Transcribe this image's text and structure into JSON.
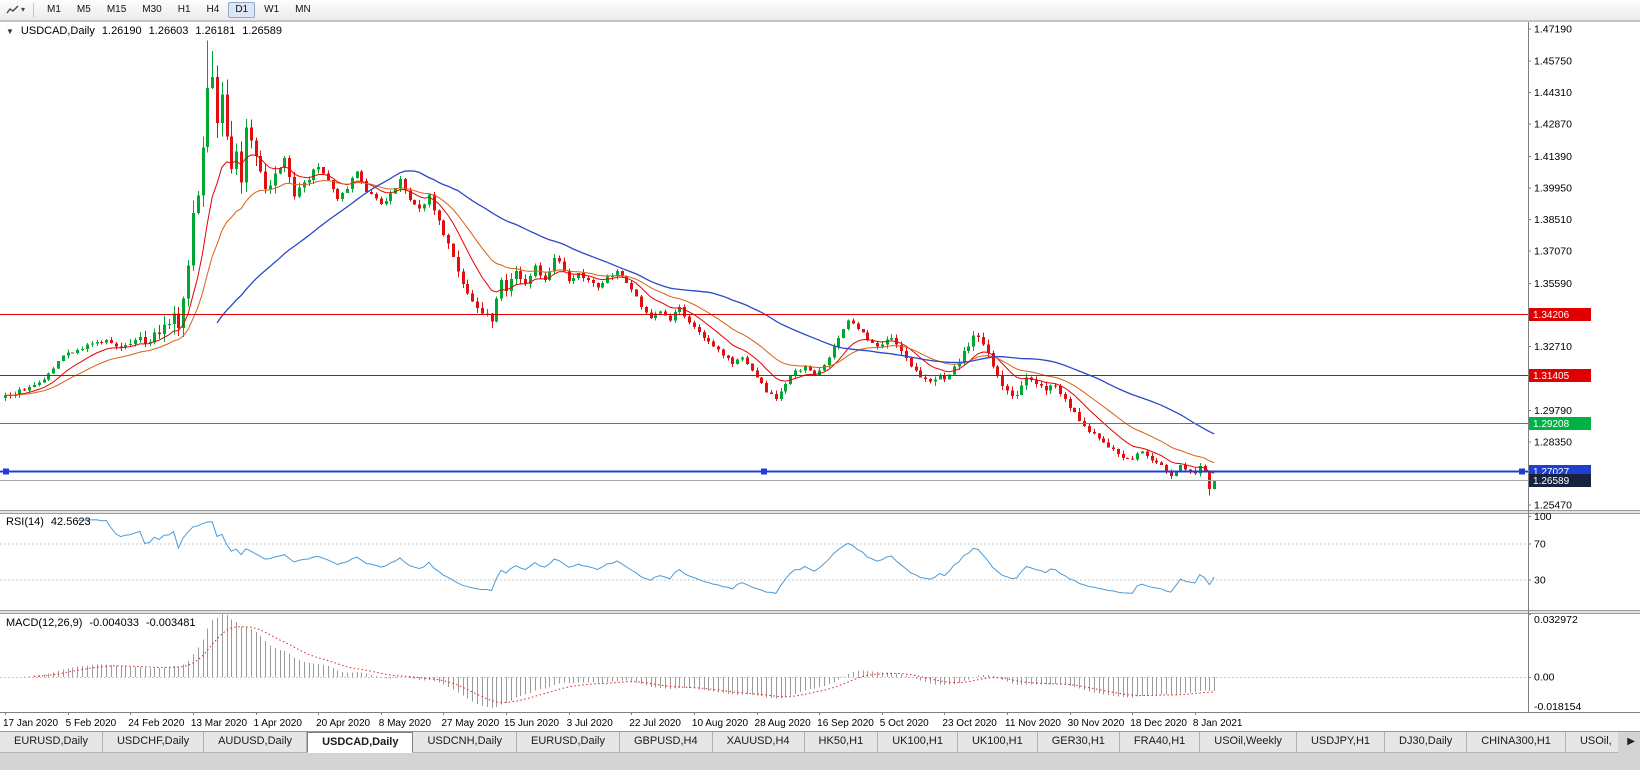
{
  "toolbar": {
    "timeframes": [
      "M1",
      "M5",
      "M15",
      "M30",
      "H1",
      "H4",
      "D1",
      "W1",
      "MN"
    ],
    "active_timeframe": "D1"
  },
  "icons": {
    "chart_dropdown": "▼",
    "toolbar_caret": "▾",
    "tab_scroll_right": "▶"
  },
  "chart": {
    "symbol_period": "USDCAD,Daily",
    "ohlc": {
      "open": "1.26190",
      "high": "1.26603",
      "low": "1.26181",
      "close": "1.26589"
    }
  },
  "chart_data": {
    "type": "candlestick",
    "title": "USDCAD,Daily",
    "candle_count": 252,
    "date_label_interval": 13,
    "x_axis_dates": [
      "17 Jan 2020",
      "5 Feb 2020",
      "24 Feb 2020",
      "13 Mar 2020",
      "1 Apr 2020",
      "20 Apr 2020",
      "8 May 2020",
      "27 May 2020",
      "15 Jun 2020",
      "3 Jul 2020",
      "22 Jul 2020",
      "10 Aug 2020",
      "28 Aug 2020",
      "16 Sep 2020",
      "5 Oct 2020",
      "23 Oct 2020",
      "11 Nov 2020",
      "30 Nov 2020",
      "18 Dec 2020",
      "8 Jan 2021"
    ],
    "y_axis_ticks": [
      "1.47190",
      "1.45750",
      "1.44310",
      "1.42870",
      "1.41390",
      "1.39950",
      "1.38510",
      "1.37070",
      "1.35590",
      "1.32710",
      "1.29790",
      "1.28350",
      "1.25470"
    ],
    "price_scale": {
      "max": 1.4752,
      "min": 1.2524
    },
    "up_color": "#00a832",
    "down_color": "#e01010",
    "price_anchors": [
      [
        0,
        1.3048
      ],
      [
        4,
        1.307
      ],
      [
        8,
        1.312
      ],
      [
        12,
        1.323
      ],
      [
        15,
        1.3255
      ],
      [
        18,
        1.3285
      ],
      [
        21,
        1.33
      ],
      [
        24,
        1.3265
      ],
      [
        27,
        1.33
      ],
      [
        30,
        1.329
      ],
      [
        33,
        1.337
      ],
      [
        35,
        1.342
      ],
      [
        36,
        1.3355
      ],
      [
        37,
        1.349
      ],
      [
        38,
        1.364
      ],
      [
        39,
        1.388
      ],
      [
        40,
        1.396
      ],
      [
        41,
        1.418
      ],
      [
        42,
        1.445
      ],
      [
        43,
        1.45
      ],
      [
        44,
        1.429
      ],
      [
        45,
        1.442
      ],
      [
        46,
        1.423
      ],
      [
        47,
        1.408
      ],
      [
        48,
        1.416
      ],
      [
        49,
        1.402
      ],
      [
        50,
        1.427
      ],
      [
        51,
        1.421
      ],
      [
        52,
        1.414
      ],
      [
        53,
        1.407
      ],
      [
        54,
        1.399
      ],
      [
        56,
        1.406
      ],
      [
        58,
        1.413
      ],
      [
        60,
        1.3955
      ],
      [
        62,
        1.402
      ],
      [
        65,
        1.409
      ],
      [
        67,
        1.403
      ],
      [
        69,
        1.3945
      ],
      [
        71,
        1.399
      ],
      [
        73,
        1.407
      ],
      [
        75,
        1.3975
      ],
      [
        78,
        1.392
      ],
      [
        80,
        1.397
      ],
      [
        82,
        1.4035
      ],
      [
        84,
        1.394
      ],
      [
        86,
        1.39
      ],
      [
        88,
        1.3965
      ],
      [
        90,
        1.3845
      ],
      [
        91,
        1.378
      ],
      [
        93,
        1.368
      ],
      [
        95,
        1.3555
      ],
      [
        97,
        1.3475
      ],
      [
        99,
        1.342
      ],
      [
        101,
        1.3385
      ],
      [
        103,
        1.3575
      ],
      [
        104,
        1.3525
      ],
      [
        106,
        1.3615
      ],
      [
        108,
        1.3555
      ],
      [
        110,
        1.364
      ],
      [
        112,
        1.3575
      ],
      [
        114,
        1.3675
      ],
      [
        116,
        1.3615
      ],
      [
        117,
        1.357
      ],
      [
        119,
        1.3605
      ],
      [
        121,
        1.3575
      ],
      [
        123,
        1.354
      ],
      [
        125,
        1.359
      ],
      [
        127,
        1.3615
      ],
      [
        129,
        1.356
      ],
      [
        130,
        1.353
      ],
      [
        132,
        1.345
      ],
      [
        134,
        1.34
      ],
      [
        136,
        1.343
      ],
      [
        138,
        1.339
      ],
      [
        140,
        1.345
      ],
      [
        142,
        1.338
      ],
      [
        143,
        1.336
      ],
      [
        145,
        1.331
      ],
      [
        147,
        1.327
      ],
      [
        149,
        1.323
      ],
      [
        151,
        1.319
      ],
      [
        153,
        1.322
      ],
      [
        155,
        1.316
      ],
      [
        156,
        1.313
      ],
      [
        158,
        1.306
      ],
      [
        160,
        1.303
      ],
      [
        162,
        1.31
      ],
      [
        164,
        1.316
      ],
      [
        166,
        1.318
      ],
      [
        168,
        1.314
      ],
      [
        169,
        1.316
      ],
      [
        171,
        1.322
      ],
      [
        173,
        1.331
      ],
      [
        175,
        1.339
      ],
      [
        177,
        1.335
      ],
      [
        179,
        1.33
      ],
      [
        181,
        1.327
      ],
      [
        182,
        1.328
      ],
      [
        184,
        1.331
      ],
      [
        186,
        1.325
      ],
      [
        188,
        1.318
      ],
      [
        190,
        1.313
      ],
      [
        192,
        1.311
      ],
      [
        194,
        1.314
      ],
      [
        195,
        1.312
      ],
      [
        197,
        1.318
      ],
      [
        199,
        1.325
      ],
      [
        201,
        1.332
      ],
      [
        203,
        1.328
      ],
      [
        205,
        1.318
      ],
      [
        207,
        1.309
      ],
      [
        208,
        1.307
      ],
      [
        210,
        1.305
      ],
      [
        212,
        1.313
      ],
      [
        214,
        1.31
      ],
      [
        216,
        1.307
      ],
      [
        218,
        1.309
      ],
      [
        220,
        1.303
      ],
      [
        221,
        1.299
      ],
      [
        223,
        1.293
      ],
      [
        225,
        1.288
      ],
      [
        227,
        1.285
      ],
      [
        229,
        1.281
      ],
      [
        231,
        1.278
      ],
      [
        233,
        1.276
      ],
      [
        234,
        1.2755
      ],
      [
        236,
        1.279
      ],
      [
        238,
        1.275
      ],
      [
        240,
        1.273
      ],
      [
        242,
        1.268
      ],
      [
        244,
        1.273
      ],
      [
        246,
        1.27
      ],
      [
        247,
        1.269
      ],
      [
        248,
        1.2725
      ],
      [
        249,
        1.27
      ],
      [
        250,
        1.2619
      ],
      [
        251,
        1.26589
      ]
    ],
    "wick_overrides": [
      {
        "i": 42,
        "high": 1.4668
      },
      {
        "i": 43,
        "high": 1.462
      },
      {
        "i": 250,
        "low": 1.2591
      },
      {
        "i": 251,
        "open": 1.2619,
        "high": 1.26603,
        "low": 1.26181
      }
    ],
    "moving_averages": [
      {
        "period": 10,
        "type": "ema",
        "color": "#e80000",
        "width": 1
      },
      {
        "period": 21,
        "type": "ema",
        "color": "#d86010",
        "width": 1
      },
      {
        "period": 45,
        "type": "sma",
        "color": "#2a49c8",
        "width": 1.3
      }
    ],
    "horizontal_lines": [
      {
        "price": 1.34206,
        "label": "1.34206",
        "color": "#e00000",
        "width": 1
      },
      {
        "price": 1.31405,
        "label": "1.31405",
        "color": "#e00000",
        "width": 1
      },
      {
        "price": 1.29208,
        "label": "1.29208",
        "color": "#00b244",
        "width": 1
      },
      {
        "price": 1.27027,
        "label": "1.27027",
        "color": "#1f3fd0",
        "width": 2,
        "handles": true
      },
      {
        "price": 1.26589,
        "label": "1.26589",
        "color": "#a8a8a8",
        "label_bg": "#16223f",
        "width": 1,
        "bid_line": true
      }
    ],
    "indicators": {
      "rsi": {
        "label": "RSI(14)",
        "value": "42.5623",
        "period": 14,
        "color": "#4d9bd6",
        "levels": [
          70,
          30
        ],
        "axis_labels": [
          "100",
          "70",
          "30"
        ]
      },
      "macd": {
        "label": "MACD(12,26,9)",
        "values": [
          "-0.004033",
          "-0.003481"
        ],
        "fast": 12,
        "slow": 26,
        "signal": 9,
        "hist_color": "#9a9a9a",
        "signal_color": "#e02020",
        "axis_labels": [
          "0.032972",
          "0.00",
          "-0.018154"
        ],
        "scale_max": 0.032972,
        "scale_min": -0.018154
      }
    }
  },
  "tabbar": {
    "tabs": [
      "EURUSD,Daily",
      "USDCHF,Daily",
      "AUDUSD,Daily",
      "USDCAD,Daily",
      "USDCNH,Daily",
      "EURUSD,Daily",
      "GBPUSD,H4",
      "XAUUSD,H4",
      "HK50,H1",
      "UK100,H1",
      "UK100,H1",
      "GER30,H1",
      "FRA40,H1",
      "USOil,Weekly",
      "USDJPY,H1",
      "DJ30,Daily",
      "CHINA300,H1",
      "USOil,"
    ],
    "active_index": 3
  }
}
